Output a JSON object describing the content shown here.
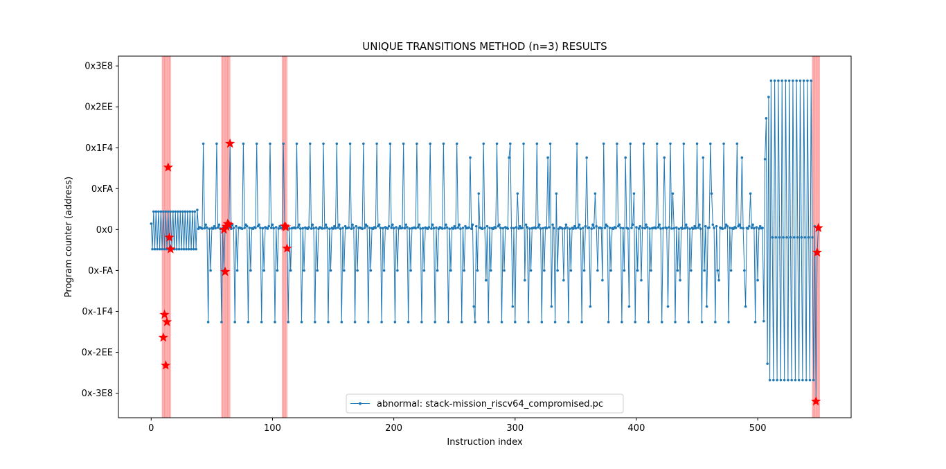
{
  "chart_data": {
    "type": "line",
    "title": "UNIQUE TRANSITIONS METHOD (n=3) RESULTS",
    "xlabel": "Instruction index",
    "ylabel": "Program counter (address)",
    "xlim": [
      -27,
      577
    ],
    "ylim": [
      -1150,
      1060
    ],
    "x_ticks": [
      0,
      100,
      200,
      300,
      400,
      500
    ],
    "y_ticks": [
      {
        "value": 1000,
        "label": "0x3E8"
      },
      {
        "value": 750,
        "label": "0x2EE"
      },
      {
        "value": 500,
        "label": "0x1F4"
      },
      {
        "value": 250,
        "label": "0xFA"
      },
      {
        "value": 0,
        "label": "0x0"
      },
      {
        "value": -250,
        "label": "0x-FA"
      },
      {
        "value": -500,
        "label": "0x-1F4"
      },
      {
        "value": -750,
        "label": "0x-2EE"
      },
      {
        "value": -1000,
        "label": "0x-3E8"
      }
    ],
    "grid": false,
    "legend_position": "bottom-center",
    "series": [
      {
        "name": "abnormal: stack-mission_riscv64_compromised.pc",
        "color": "#1f77b4",
        "marker": "dot",
        "pattern": {
          "startup_x_range": [
            0,
            38
          ],
          "startup_values": [
            36,
            -120,
            110,
            -120,
            110,
            -120,
            110,
            -120,
            110,
            -120,
            110,
            -120,
            110,
            -120,
            110,
            -120,
            110,
            -120,
            110,
            -120,
            110,
            -120,
            110,
            -120,
            110,
            -120,
            110,
            -120,
            110,
            -120,
            110,
            -120,
            110,
            -120,
            110,
            -120,
            110,
            -120,
            120
          ],
          "loop_x_range": [
            38,
            507
          ],
          "loop_peak_high": 525,
          "loop_peak_low": -565,
          "loop_baseline": 10,
          "tail_x_range": [
            508,
            546
          ],
          "tail_high": 910,
          "tail_low": -920,
          "tail_mid": -48
        }
      }
    ],
    "anomalies": {
      "marker": "red-star",
      "color": "#ff0000",
      "points": [
        {
          "x": 10,
          "y": -660
        },
        {
          "x": 11,
          "y": -520
        },
        {
          "x": 12,
          "y": -830
        },
        {
          "x": 13,
          "y": -565
        },
        {
          "x": 14,
          "y": 380
        },
        {
          "x": 15,
          "y": -48
        },
        {
          "x": 16,
          "y": -120
        },
        {
          "x": 60,
          "y": 0
        },
        {
          "x": 61,
          "y": -258
        },
        {
          "x": 62,
          "y": 18
        },
        {
          "x": 63,
          "y": 35
        },
        {
          "x": 64,
          "y": 30
        },
        {
          "x": 65,
          "y": 525
        },
        {
          "x": 110,
          "y": 20
        },
        {
          "x": 111,
          "y": 15
        },
        {
          "x": 112,
          "y": -115
        },
        {
          "x": 548,
          "y": -1050
        },
        {
          "x": 549,
          "y": -140
        },
        {
          "x": 550,
          "y": 10
        }
      ]
    },
    "highlight_regions": {
      "color": "#ff0000",
      "ranges": [
        [
          9,
          16
        ],
        [
          58,
          65
        ],
        [
          108,
          112
        ],
        [
          545,
          551
        ]
      ]
    }
  }
}
